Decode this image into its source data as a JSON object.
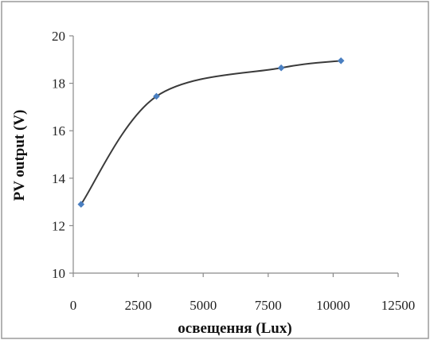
{
  "chart_data": {
    "type": "line",
    "xlabel": "освещення (Lux)",
    "ylabel": "PV output (V)",
    "xlim": [
      0,
      12500
    ],
    "ylim": [
      10,
      20
    ],
    "x_ticks": [
      "0",
      "2500",
      "5000",
      "7500",
      "10000",
      "12500"
    ],
    "y_ticks": [
      "10",
      "12",
      "14",
      "16",
      "18",
      "20"
    ],
    "grid": false,
    "smooth": true,
    "series": [
      {
        "x": [
          300,
          3200,
          8000,
          10300
        ],
        "y": [
          12.9,
          17.45,
          18.65,
          18.95
        ]
      }
    ],
    "colors": {
      "line": "#3a3a3a",
      "marker": "#4a7fc1",
      "axis": "#8a8a8a",
      "frame": "#9a9a9a"
    }
  }
}
